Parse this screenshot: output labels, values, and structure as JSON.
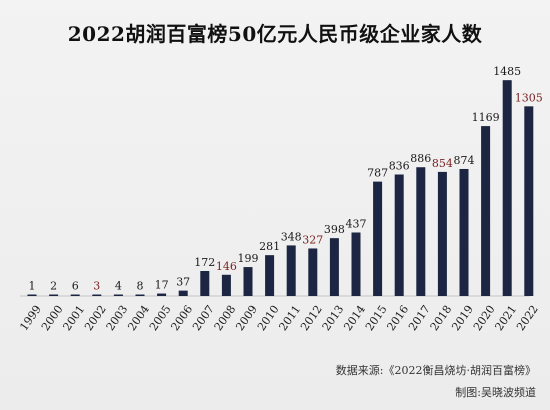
{
  "chart_data": {
    "type": "bar",
    "title": "2022胡润百富榜50亿元人民币级企业家人数",
    "categories": [
      "1999",
      "2000",
      "2001",
      "2002",
      "2003",
      "2004",
      "2005",
      "2006",
      "2007",
      "2008",
      "2009",
      "2010",
      "2011",
      "2012",
      "2013",
      "2014",
      "2015",
      "2016",
      "2017",
      "2018",
      "2019",
      "2020",
      "2021",
      "2022"
    ],
    "values": [
      1,
      2,
      6,
      3,
      4,
      8,
      17,
      37,
      172,
      146,
      199,
      281,
      348,
      327,
      398,
      437,
      787,
      836,
      886,
      854,
      874,
      1169,
      1485,
      1305
    ],
    "decreases": [
      "2002",
      "2008",
      "2012",
      "2018",
      "2022"
    ],
    "xlabel": "",
    "ylabel": "",
    "ylim": [
      0,
      1500
    ],
    "grid": false,
    "legend": "none"
  },
  "colors": {
    "bar": "#1c2541",
    "label_default": "#1a1a1a",
    "label_decrease": "#7a1f1f",
    "background": "#efefef"
  },
  "footer": {
    "source": "数据来源:《2022衡昌烧坊·胡润百富榜》",
    "credit": "制图:吴晓波频道"
  }
}
